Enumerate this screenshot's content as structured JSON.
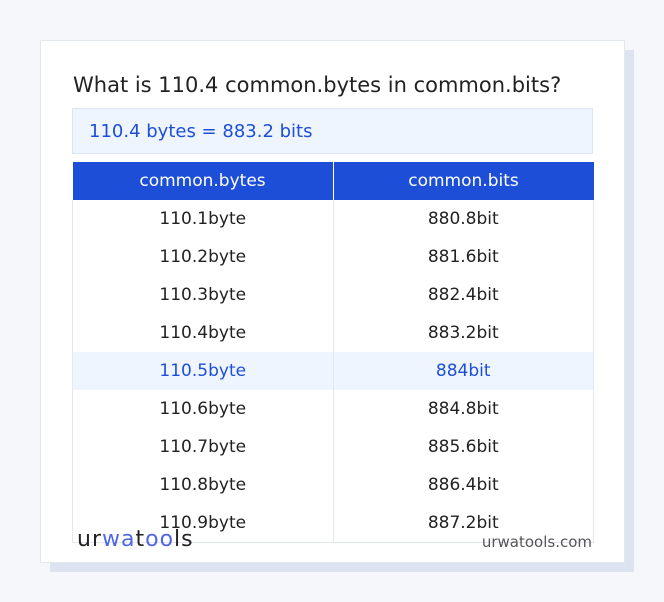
{
  "title": "What is 110.4 common.bytes in common.bits?",
  "result": "110.4 bytes = 883.2 bits",
  "table": {
    "headers": [
      "common.bytes",
      "common.bits"
    ],
    "rows": [
      [
        "110.1byte",
        "880.8bit"
      ],
      [
        "110.2byte",
        "881.6bit"
      ],
      [
        "110.3byte",
        "882.4bit"
      ],
      [
        "110.4byte",
        "883.2bit"
      ],
      [
        "110.5byte",
        "884bit"
      ],
      [
        "110.6byte",
        "884.8bit"
      ],
      [
        "110.7byte",
        "885.6bit"
      ],
      [
        "110.8byte",
        "886.4bit"
      ],
      [
        "110.9byte",
        "887.2bit"
      ]
    ],
    "highlighted_row": 4
  },
  "footer": {
    "logo": "urwatools",
    "site": "urwatools.com"
  },
  "colors": {
    "accent": "#1d4ed8",
    "highlight_bg": "#eef5fe"
  }
}
